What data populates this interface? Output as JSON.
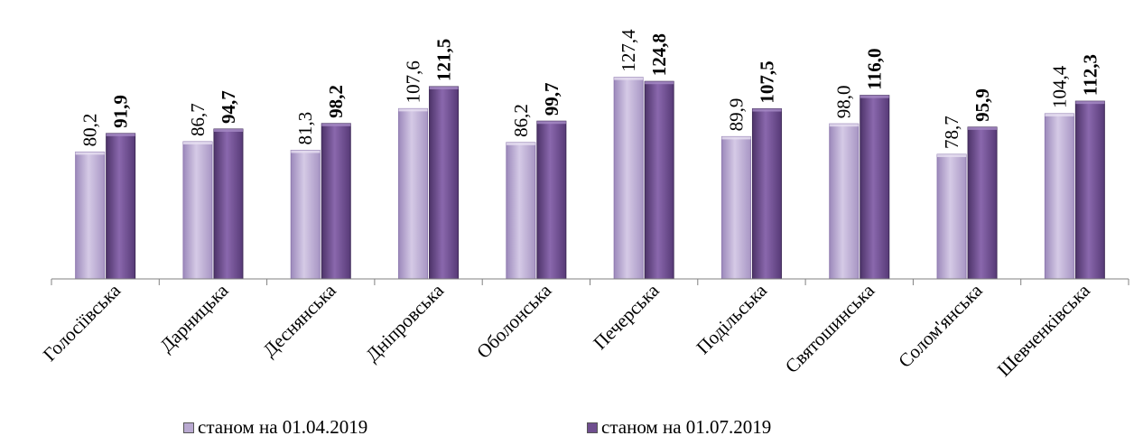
{
  "chart_data": {
    "type": "bar",
    "categories": [
      "Голосіївська",
      "Дарницька",
      "Деснянська",
      "Дніпровська",
      "Оболонська",
      "Печерська",
      "Подільська",
      "Святошинська",
      "Солом'янська",
      "Шевченківська"
    ],
    "series": [
      {
        "name": "станом на 01.04.2019",
        "values": [
          80.2,
          86.7,
          81.3,
          107.6,
          86.2,
          127.4,
          89.9,
          98.0,
          78.7,
          104.4
        ],
        "labels": [
          "80,2",
          "86,7",
          "81,3",
          "107,6",
          "86,2",
          "127,4",
          "89,9",
          "98,0",
          "78,7",
          "104,4"
        ],
        "color": "#b9a9d1",
        "label_bold": false
      },
      {
        "name": "станом на 01.07.2019",
        "values": [
          91.9,
          94.7,
          98.2,
          121.5,
          99.7,
          124.8,
          107.5,
          116.0,
          95.9,
          112.3
        ],
        "labels": [
          "91,9",
          "94,7",
          "98,2",
          "121,5",
          "99,7",
          "124,8",
          "107,5",
          "116,0",
          "95,9",
          "112,3"
        ],
        "color": "#6f4e8f",
        "label_bold": true
      }
    ],
    "ylim": [
      0,
      130
    ],
    "grid": false,
    "legend": "bottom"
  }
}
